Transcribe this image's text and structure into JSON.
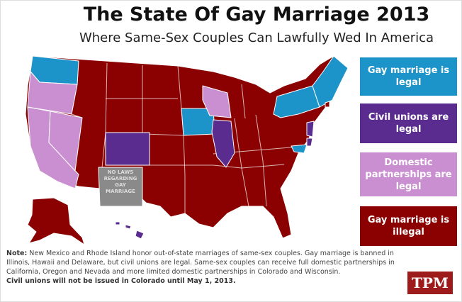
{
  "header": {
    "title": "The State Of Gay Marriage 2013",
    "subtitle": "Where Same-Sex Couples Can Lawfully Wed In America"
  },
  "legend": [
    "Gay marriage is legal",
    "Civil unions are legal",
    "Domestic partnerships are legal",
    "Gay marriage is illegal"
  ],
  "map_labels": {
    "new_mexico": [
      "NO LAWS",
      "REGARDING",
      "GAY",
      "MARRIAGE"
    ]
  },
  "note": {
    "label": "Note:",
    "text": "New Mexico and Rhode Island honor out-of-state marriages of same-sex couples. Gay marriage is banned in Illinois, Hawaii and Delaware, but civil unions are legal. Same-sex couples can receive full domestic partnerships in California, Oregon and Nevada and more limited domestic partnerships in Colorado and Wisconsin.",
    "emphasis": "Civil unions will not be issued in Colorado until May 1, 2013."
  },
  "logo": "TPM"
}
